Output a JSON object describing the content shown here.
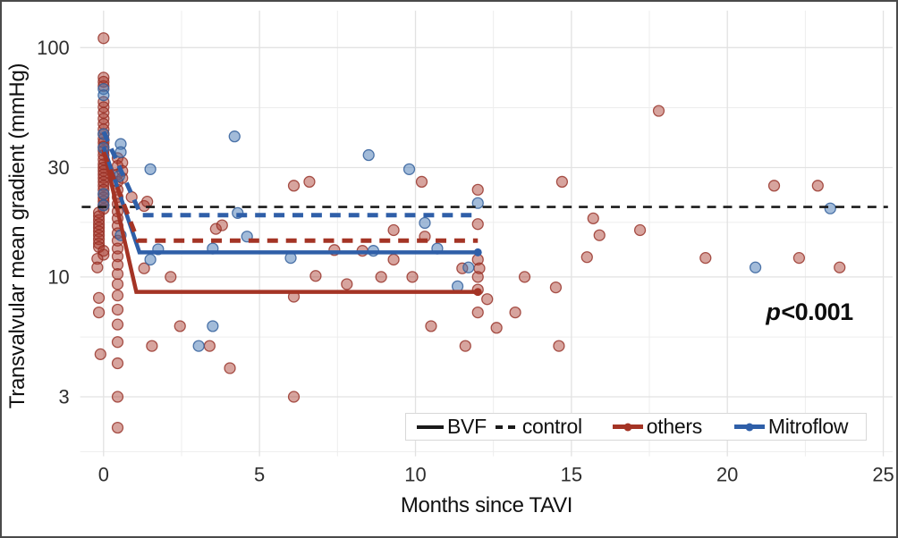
{
  "chart_data": {
    "type": "scatter",
    "title": "",
    "xlabel": "Months since TAVI",
    "ylabel": "Transvalvular mean gradient (mmHg)",
    "y_scale": "log",
    "grid": true,
    "xlim": [
      -0.75,
      25.3
    ],
    "ylim": [
      1.65,
      145
    ],
    "x_ticks": [
      0,
      5,
      10,
      15,
      20,
      25
    ],
    "x_minor": [
      2.5,
      7.5,
      12.5,
      17.5,
      22.5
    ],
    "y_ticks": [
      3,
      10,
      30,
      100
    ],
    "y_minor": [
      1.73,
      5.47,
      17.3,
      54.7
    ],
    "annotation": {
      "italic_part": "p",
      "rest": "<0.001",
      "x": 22.4,
      "y": 7.1
    },
    "reference_line": {
      "name": "control-reference-line",
      "y": 20.2,
      "x_start": -0.7,
      "x_end": 25.15,
      "color": "#1a1a1a",
      "style": "dashed"
    },
    "series": [
      {
        "name": "bvf-others",
        "display": "BVF others",
        "type": "line",
        "style": "solid",
        "color": "#a43425",
        "points": [
          [
            0,
            36
          ],
          [
            1.05,
            8.6
          ],
          [
            12,
            8.6
          ]
        ],
        "end_marker": true
      },
      {
        "name": "bvf-mitroflow",
        "display": "BVF Mitroflow",
        "type": "line",
        "style": "solid",
        "color": "#2f5fa8",
        "points": [
          [
            0,
            37
          ],
          [
            1.15,
            12.8
          ],
          [
            12,
            12.8
          ]
        ],
        "end_marker": true
      },
      {
        "name": "control-others",
        "display": "control others",
        "type": "line",
        "style": "dashed",
        "color": "#a43425",
        "points": [
          [
            0,
            35
          ],
          [
            1.1,
            14.4
          ],
          [
            12,
            14.4
          ]
        ]
      },
      {
        "name": "control-mitroflow",
        "display": "control Mitroflow",
        "type": "line",
        "style": "dashed",
        "color": "#2f5fa8",
        "points": [
          [
            0,
            43
          ],
          [
            1.2,
            18.6
          ],
          [
            12,
            18.6
          ]
        ]
      },
      {
        "name": "points-others",
        "display": "others",
        "type": "scatter",
        "fill": "rgba(167,54,40,0.45)",
        "stroke": "rgba(148,44,34,0.8)",
        "points": [
          [
            0,
            110
          ],
          [
            0,
            74
          ],
          [
            0,
            71
          ],
          [
            0,
            68
          ],
          [
            0,
            58
          ],
          [
            0,
            55
          ],
          [
            0,
            52
          ],
          [
            0,
            49
          ],
          [
            0,
            46.5
          ],
          [
            0,
            44
          ],
          [
            0,
            42
          ],
          [
            0,
            40
          ],
          [
            0,
            38.5
          ],
          [
            0,
            37
          ],
          [
            0,
            35.5
          ],
          [
            0,
            34
          ],
          [
            0,
            32.5
          ],
          [
            0,
            31
          ],
          [
            0,
            30
          ],
          [
            0,
            29
          ],
          [
            0,
            28
          ],
          [
            0,
            27
          ],
          [
            0,
            26
          ],
          [
            0,
            25
          ],
          [
            0,
            24
          ],
          [
            0,
            23
          ],
          [
            0,
            22.2
          ],
          [
            0,
            21.4
          ],
          [
            0,
            20.6
          ],
          [
            0,
            19.8
          ],
          [
            -0.15,
            19.1
          ],
          [
            -0.15,
            18.4
          ],
          [
            -0.15,
            17.7
          ],
          [
            -0.15,
            17
          ],
          [
            -0.15,
            16.4
          ],
          [
            -0.15,
            15.8
          ],
          [
            -0.15,
            15.2
          ],
          [
            -0.15,
            14.6
          ],
          [
            -0.15,
            14
          ],
          [
            -0.15,
            13.5
          ],
          [
            0,
            13
          ],
          [
            0,
            12.5
          ],
          [
            -0.2,
            12
          ],
          [
            -0.2,
            11
          ],
          [
            -0.15,
            8.1
          ],
          [
            -0.15,
            7
          ],
          [
            -0.1,
            4.6
          ],
          [
            0.45,
            33
          ],
          [
            0.45,
            30.5
          ],
          [
            0.45,
            28
          ],
          [
            0.45,
            26
          ],
          [
            0.45,
            24
          ],
          [
            0.45,
            22.3
          ],
          [
            0.45,
            20.8
          ],
          [
            0.45,
            19.3
          ],
          [
            0.45,
            18
          ],
          [
            0.45,
            16.7
          ],
          [
            0.45,
            15.5
          ],
          [
            0.45,
            14.4
          ],
          [
            0.45,
            13.3
          ],
          [
            0.45,
            12.3
          ],
          [
            0.45,
            11.3
          ],
          [
            0.45,
            10.3
          ],
          [
            0.45,
            9.3
          ],
          [
            0.45,
            8.3
          ],
          [
            0.45,
            7.2
          ],
          [
            0.45,
            6.2
          ],
          [
            0.45,
            5.2
          ],
          [
            0.45,
            4.2
          ],
          [
            0.45,
            3
          ],
          [
            0.45,
            2.2
          ],
          [
            0.6,
            31.5
          ],
          [
            0.6,
            29
          ],
          [
            0.6,
            27
          ],
          [
            0.9,
            22.3
          ],
          [
            1.3,
            20.4
          ],
          [
            1.4,
            21.3
          ],
          [
            1.3,
            10.9
          ],
          [
            1.55,
            5
          ],
          [
            2.15,
            10
          ],
          [
            2.45,
            6.1
          ],
          [
            3.4,
            5
          ],
          [
            3.6,
            16.2
          ],
          [
            3.8,
            16.8
          ],
          [
            4.05,
            4
          ],
          [
            6.1,
            25
          ],
          [
            6.6,
            26
          ],
          [
            6.1,
            8.2
          ],
          [
            6.1,
            3
          ],
          [
            6.8,
            10.1
          ],
          [
            7.4,
            13.1
          ],
          [
            7.8,
            9.3
          ],
          [
            8.3,
            13
          ],
          [
            8.9,
            10
          ],
          [
            9.3,
            16
          ],
          [
            9.3,
            11.9
          ],
          [
            9.9,
            10
          ],
          [
            10.2,
            26
          ],
          [
            10.3,
            15
          ],
          [
            10.5,
            6.1
          ],
          [
            11.5,
            10.9
          ],
          [
            11.6,
            5
          ],
          [
            12,
            24
          ],
          [
            12,
            17
          ],
          [
            12,
            11.9
          ],
          [
            12.05,
            10.9
          ],
          [
            12,
            10
          ],
          [
            12,
            8.8
          ],
          [
            12,
            7
          ],
          [
            12.3,
            8
          ],
          [
            12.6,
            6
          ],
          [
            13.2,
            7
          ],
          [
            13.5,
            10
          ],
          [
            14.5,
            9
          ],
          [
            14.6,
            5
          ],
          [
            14.7,
            26
          ],
          [
            15.5,
            12.2
          ],
          [
            15.7,
            18
          ],
          [
            15.9,
            15.2
          ],
          [
            17.2,
            16
          ],
          [
            17.8,
            53
          ],
          [
            19.3,
            12.1
          ],
          [
            21.5,
            25
          ],
          [
            22.3,
            12.1
          ],
          [
            22.9,
            25
          ],
          [
            23.6,
            11
          ]
        ]
      },
      {
        "name": "points-mitroflow",
        "display": "Mitroflow",
        "type": "scatter",
        "fill": "rgba(70,120,180,0.5)",
        "stroke": "rgba(50,95,155,0.85)",
        "points": [
          [
            0,
            66
          ],
          [
            0,
            62
          ],
          [
            0,
            42
          ],
          [
            0,
            36.5
          ],
          [
            0,
            23
          ],
          [
            0,
            20.5
          ],
          [
            0.55,
            38
          ],
          [
            0.55,
            35
          ],
          [
            0.5,
            27.5
          ],
          [
            0.55,
            15.2
          ],
          [
            1.5,
            29.5
          ],
          [
            1.5,
            11.9
          ],
          [
            1.75,
            13.2
          ],
          [
            3.05,
            5
          ],
          [
            3.5,
            13.3
          ],
          [
            3.5,
            6.1
          ],
          [
            4.2,
            41
          ],
          [
            4.3,
            19
          ],
          [
            4.6,
            15
          ],
          [
            6,
            12.1
          ],
          [
            8.5,
            34
          ],
          [
            8.65,
            13
          ],
          [
            9.8,
            29.5
          ],
          [
            10.3,
            17.2
          ],
          [
            10.7,
            13.3
          ],
          [
            11.35,
            9.1
          ],
          [
            11.7,
            11
          ],
          [
            12,
            21
          ],
          [
            20.9,
            11
          ],
          [
            23.3,
            19.9
          ]
        ]
      }
    ],
    "legend": {
      "position": "bottom-center-inside",
      "items": [
        {
          "label": "BVF",
          "swatch": "solid-black"
        },
        {
          "label": "control",
          "swatch": "dashed-black"
        },
        {
          "label": "others",
          "swatch": "line-dot-red"
        },
        {
          "label": "Mitroflow",
          "swatch": "line-dot-blue"
        }
      ]
    },
    "colors": {
      "others": "#a43425",
      "mitroflow": "#2f5fa8",
      "black": "#1a1a1a",
      "grid_major": "#e2e2e2",
      "grid_minor": "#ededed",
      "tick_text": "#2e2e2e"
    }
  }
}
